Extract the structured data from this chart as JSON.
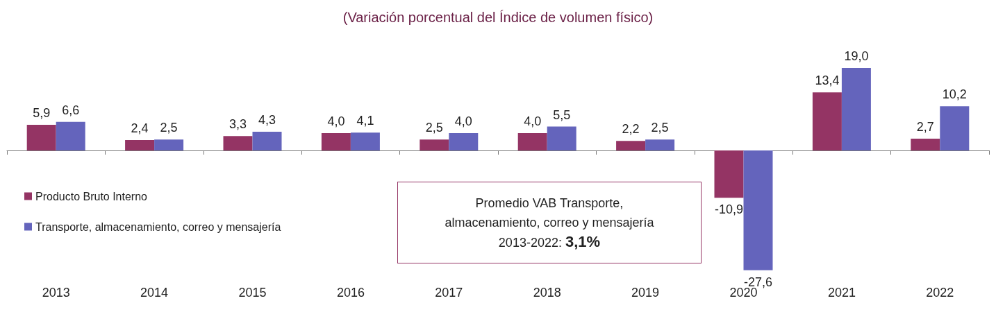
{
  "chart_data": {
    "type": "bar",
    "title": "(Variación porcentual del Índice de volumen físico)",
    "categories": [
      "2013",
      "2014",
      "2015",
      "2016",
      "2017",
      "2018",
      "2019",
      "2020",
      "2021",
      "2022"
    ],
    "series": [
      {
        "name": "Producto Bruto Interno",
        "color": "#943464",
        "values": [
          5.9,
          2.4,
          3.3,
          4.0,
          2.5,
          4.0,
          2.2,
          -10.9,
          13.4,
          2.7
        ],
        "value_labels": [
          "5,9",
          "2,4",
          "3,3",
          "4,0",
          "2,5",
          "4,0",
          "2,2",
          "-10,9",
          "13,4",
          "2,7"
        ]
      },
      {
        "name": "Transporte, almacenamiento, correo y mensajería",
        "color": "#6464bc",
        "values": [
          6.6,
          2.5,
          4.3,
          4.1,
          4.0,
          5.5,
          2.5,
          -27.6,
          19.0,
          10.2
        ],
        "value_labels": [
          "6,6",
          "2,5",
          "4,3",
          "4,1",
          "4,0",
          "5,5",
          "2,5",
          "-27,6",
          "19,0",
          "10,2"
        ]
      }
    ],
    "annotations": [
      "Promedio VAB Transporte,\nalmacenamiento, correo y mensajería\n2013-2022: 3,1%"
    ],
    "legend": "left"
  }
}
